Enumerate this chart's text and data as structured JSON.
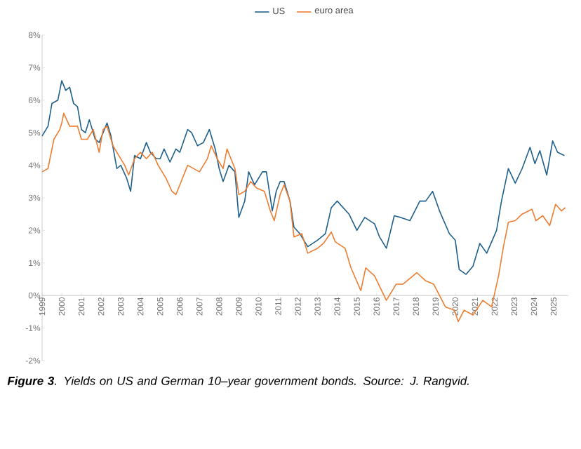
{
  "chart_data": {
    "type": "line",
    "legend": "top",
    "marker": "none",
    "line_style": "solid",
    "grid": false,
    "xlim": [
      1999,
      2025.75
    ],
    "xticks": [
      1999,
      2000,
      2001,
      2002,
      2003,
      2004,
      2005,
      2006,
      2007,
      2008,
      2009,
      2010,
      2011,
      2012,
      2013,
      2014,
      2015,
      2016,
      2017,
      2018,
      2019,
      2020,
      2021,
      2022,
      2023,
      2024,
      2025
    ],
    "ylim": [
      -2,
      8
    ],
    "yticks": [
      {
        "value": -2,
        "label": "-2%"
      },
      {
        "value": -1,
        "label": "-1%"
      },
      {
        "value": 0,
        "label": "0%"
      },
      {
        "value": 1,
        "label": "1%"
      },
      {
        "value": 2,
        "label": "2%"
      },
      {
        "value": 3,
        "label": "3%"
      },
      {
        "value": 4,
        "label": "4%"
      },
      {
        "value": 5,
        "label": "5%"
      },
      {
        "value": 6,
        "label": "6%"
      },
      {
        "value": 7,
        "label": "7%"
      },
      {
        "value": 8,
        "label": "8%"
      }
    ],
    "annotations": [
      "**Figure 3**. Yields on US and German 10–year government bonds. Source: J. Rangvid."
    ],
    "series": [
      {
        "name": "US",
        "color": "#1f5f8b",
        "x": [
          1999.0,
          1999.3,
          1999.5,
          1999.8,
          2000.0,
          2000.2,
          2000.4,
          2000.6,
          2000.8,
          2001.0,
          2001.2,
          2001.4,
          2001.7,
          2001.9,
          2002.1,
          2002.3,
          2002.5,
          2002.8,
          2003.0,
          2003.3,
          2003.5,
          2003.7,
          2004.0,
          2004.3,
          2004.5,
          2004.8,
          2005.0,
          2005.2,
          2005.5,
          2005.8,
          2006.0,
          2006.4,
          2006.6,
          2006.9,
          2007.2,
          2007.5,
          2007.8,
          2008.0,
          2008.2,
          2008.5,
          2008.8,
          2009.0,
          2009.3,
          2009.5,
          2009.8,
          2010.2,
          2010.4,
          2010.7,
          2010.9,
          2011.1,
          2011.3,
          2011.6,
          2011.8,
          2012.1,
          2012.5,
          2013.0,
          2013.4,
          2013.7,
          2014.0,
          2014.6,
          2015.0,
          2015.4,
          2015.9,
          2016.15,
          2016.5,
          2016.9,
          2017.2,
          2017.7,
          2018.2,
          2018.5,
          2018.85,
          2019.2,
          2019.7,
          2020.0,
          2020.2,
          2020.55,
          2020.9,
          2021.25,
          2021.6,
          2022.1,
          2022.35,
          2022.7,
          2023.05,
          2023.4,
          2023.8,
          2024.05,
          2024.3,
          2024.65,
          2024.95,
          2025.2,
          2025.55
        ],
        "values": [
          4.9,
          5.2,
          5.9,
          6.0,
          6.6,
          6.3,
          6.4,
          5.9,
          5.8,
          5.1,
          5.0,
          5.4,
          4.8,
          4.7,
          5.0,
          5.3,
          4.9,
          3.9,
          4.0,
          3.6,
          3.2,
          4.3,
          4.2,
          4.7,
          4.4,
          4.2,
          4.2,
          4.5,
          4.1,
          4.5,
          4.4,
          5.1,
          5.0,
          4.6,
          4.7,
          5.1,
          4.5,
          3.9,
          3.5,
          4.0,
          3.8,
          2.4,
          2.9,
          3.8,
          3.4,
          3.8,
          3.8,
          2.6,
          3.2,
          3.5,
          3.5,
          2.9,
          2.1,
          1.9,
          1.5,
          1.7,
          1.9,
          2.7,
          2.9,
          2.5,
          2.0,
          2.4,
          2.2,
          1.8,
          1.45,
          2.45,
          2.4,
          2.3,
          2.9,
          2.9,
          3.2,
          2.6,
          1.9,
          1.7,
          0.8,
          0.65,
          0.9,
          1.6,
          1.3,
          2.0,
          2.9,
          3.9,
          3.45,
          3.9,
          4.55,
          4.05,
          4.45,
          3.7,
          4.75,
          4.4,
          4.3
        ]
      },
      {
        "name": "euro area",
        "color": "#ed7d31",
        "x": [
          1999.0,
          1999.3,
          1999.6,
          1999.9,
          2000.0,
          2000.1,
          2000.4,
          2000.8,
          2001.0,
          2001.3,
          2001.6,
          2001.9,
          2002.1,
          2002.3,
          2002.6,
          2003.0,
          2003.2,
          2003.4,
          2003.7,
          2004.0,
          2004.3,
          2004.6,
          2004.9,
          2005.3,
          2005.6,
          2005.8,
          2006.0,
          2006.4,
          2006.7,
          2007.0,
          2007.4,
          2007.6,
          2007.9,
          2008.2,
          2008.4,
          2008.8,
          2009.0,
          2009.3,
          2009.6,
          2009.9,
          2010.3,
          2010.6,
          2010.8,
          2011.1,
          2011.3,
          2011.6,
          2011.8,
          2012.2,
          2012.5,
          2013.0,
          2013.3,
          2013.7,
          2013.9,
          2014.4,
          2014.7,
          2015.2,
          2015.45,
          2015.9,
          2016.3,
          2016.5,
          2017.0,
          2017.35,
          2018.05,
          2018.5,
          2018.9,
          2019.5,
          2019.95,
          2020.15,
          2020.45,
          2020.9,
          2021.4,
          2021.85,
          2022.2,
          2022.45,
          2022.7,
          2023.05,
          2023.4,
          2023.9,
          2024.1,
          2024.45,
          2024.8,
          2025.1,
          2025.4,
          2025.6
        ],
        "values": [
          3.8,
          3.9,
          4.8,
          5.1,
          5.3,
          5.6,
          5.2,
          5.2,
          4.8,
          4.8,
          5.1,
          4.4,
          5.1,
          5.2,
          4.6,
          4.2,
          4.0,
          3.7,
          4.2,
          4.4,
          4.2,
          4.4,
          4.0,
          3.6,
          3.2,
          3.1,
          3.4,
          4.0,
          3.9,
          3.8,
          4.2,
          4.6,
          4.2,
          3.9,
          4.5,
          3.9,
          3.1,
          3.2,
          3.5,
          3.3,
          3.2,
          2.6,
          2.3,
          3.1,
          3.4,
          2.9,
          1.8,
          1.9,
          1.3,
          1.45,
          1.6,
          1.95,
          1.65,
          1.45,
          0.85,
          0.15,
          0.85,
          0.6,
          0.1,
          -0.15,
          0.35,
          0.35,
          0.7,
          0.45,
          0.35,
          -0.35,
          -0.45,
          -0.8,
          -0.45,
          -0.6,
          -0.15,
          -0.35,
          0.6,
          1.5,
          2.25,
          2.3,
          2.5,
          2.65,
          2.3,
          2.45,
          2.15,
          2.8,
          2.6,
          2.7
        ]
      }
    ]
  }
}
